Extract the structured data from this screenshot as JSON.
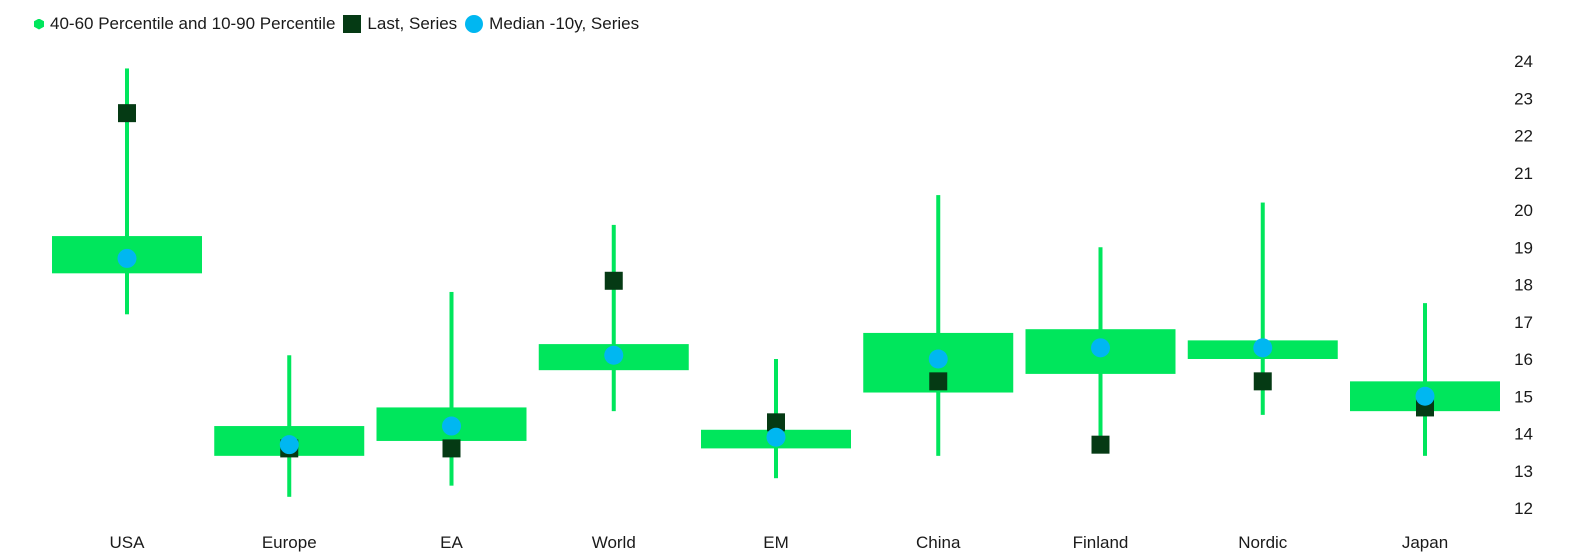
{
  "legend": {
    "range_label": "40-60 Percentile and 10-90 Percentile",
    "last_label": "Last, Series",
    "median_label": "Median -10y, Series"
  },
  "colors": {
    "range": "#00E65C",
    "last": "#053A14",
    "median": "#00B7F1"
  },
  "chart_data": {
    "type": "box",
    "categories": [
      "USA",
      "Europe",
      "EA",
      "World",
      "EM",
      "China",
      "Finland",
      "Nordic",
      "Japan"
    ],
    "p10": [
      17.2,
      12.3,
      12.6,
      14.6,
      12.8,
      13.4,
      13.7,
      14.5,
      13.4
    ],
    "p40": [
      18.3,
      13.4,
      13.8,
      15.7,
      13.6,
      15.1,
      15.6,
      16.0,
      14.6
    ],
    "p60": [
      19.3,
      14.2,
      14.7,
      16.4,
      14.1,
      16.7,
      16.8,
      16.5,
      15.4
    ],
    "p90": [
      23.8,
      16.1,
      17.8,
      19.6,
      16.0,
      20.4,
      19.0,
      20.2,
      17.5
    ],
    "last": [
      22.6,
      13.6,
      13.6,
      18.1,
      14.3,
      15.4,
      13.7,
      15.4,
      14.7
    ],
    "median": [
      18.7,
      13.7,
      14.2,
      16.1,
      13.9,
      16.0,
      16.3,
      16.3,
      15.0
    ],
    "y_ticks": [
      12,
      13,
      14,
      15,
      16,
      17,
      18,
      19,
      20,
      21,
      22,
      23,
      24
    ],
    "ylim": [
      12,
      24
    ],
    "y_axis_side": "right",
    "grid": false
  }
}
